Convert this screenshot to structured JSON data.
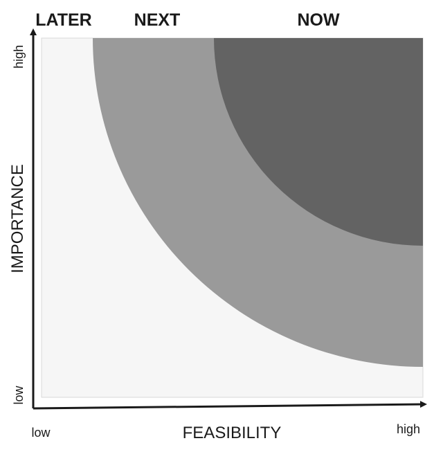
{
  "zones": {
    "later": "LATER",
    "next": "NEXT",
    "now": "NOW"
  },
  "axes": {
    "x": {
      "title": "FEASIBILITY",
      "low": "low",
      "high": "high"
    },
    "y": {
      "title": "IMPORTANCE",
      "low": "low",
      "high": "high"
    }
  },
  "colors": {
    "later_zone": "#f6f6f6",
    "next_zone": "#9a9a9a",
    "now_zone": "#636363",
    "axis": "#1a1a1a",
    "text": "#1a1a1a"
  }
}
